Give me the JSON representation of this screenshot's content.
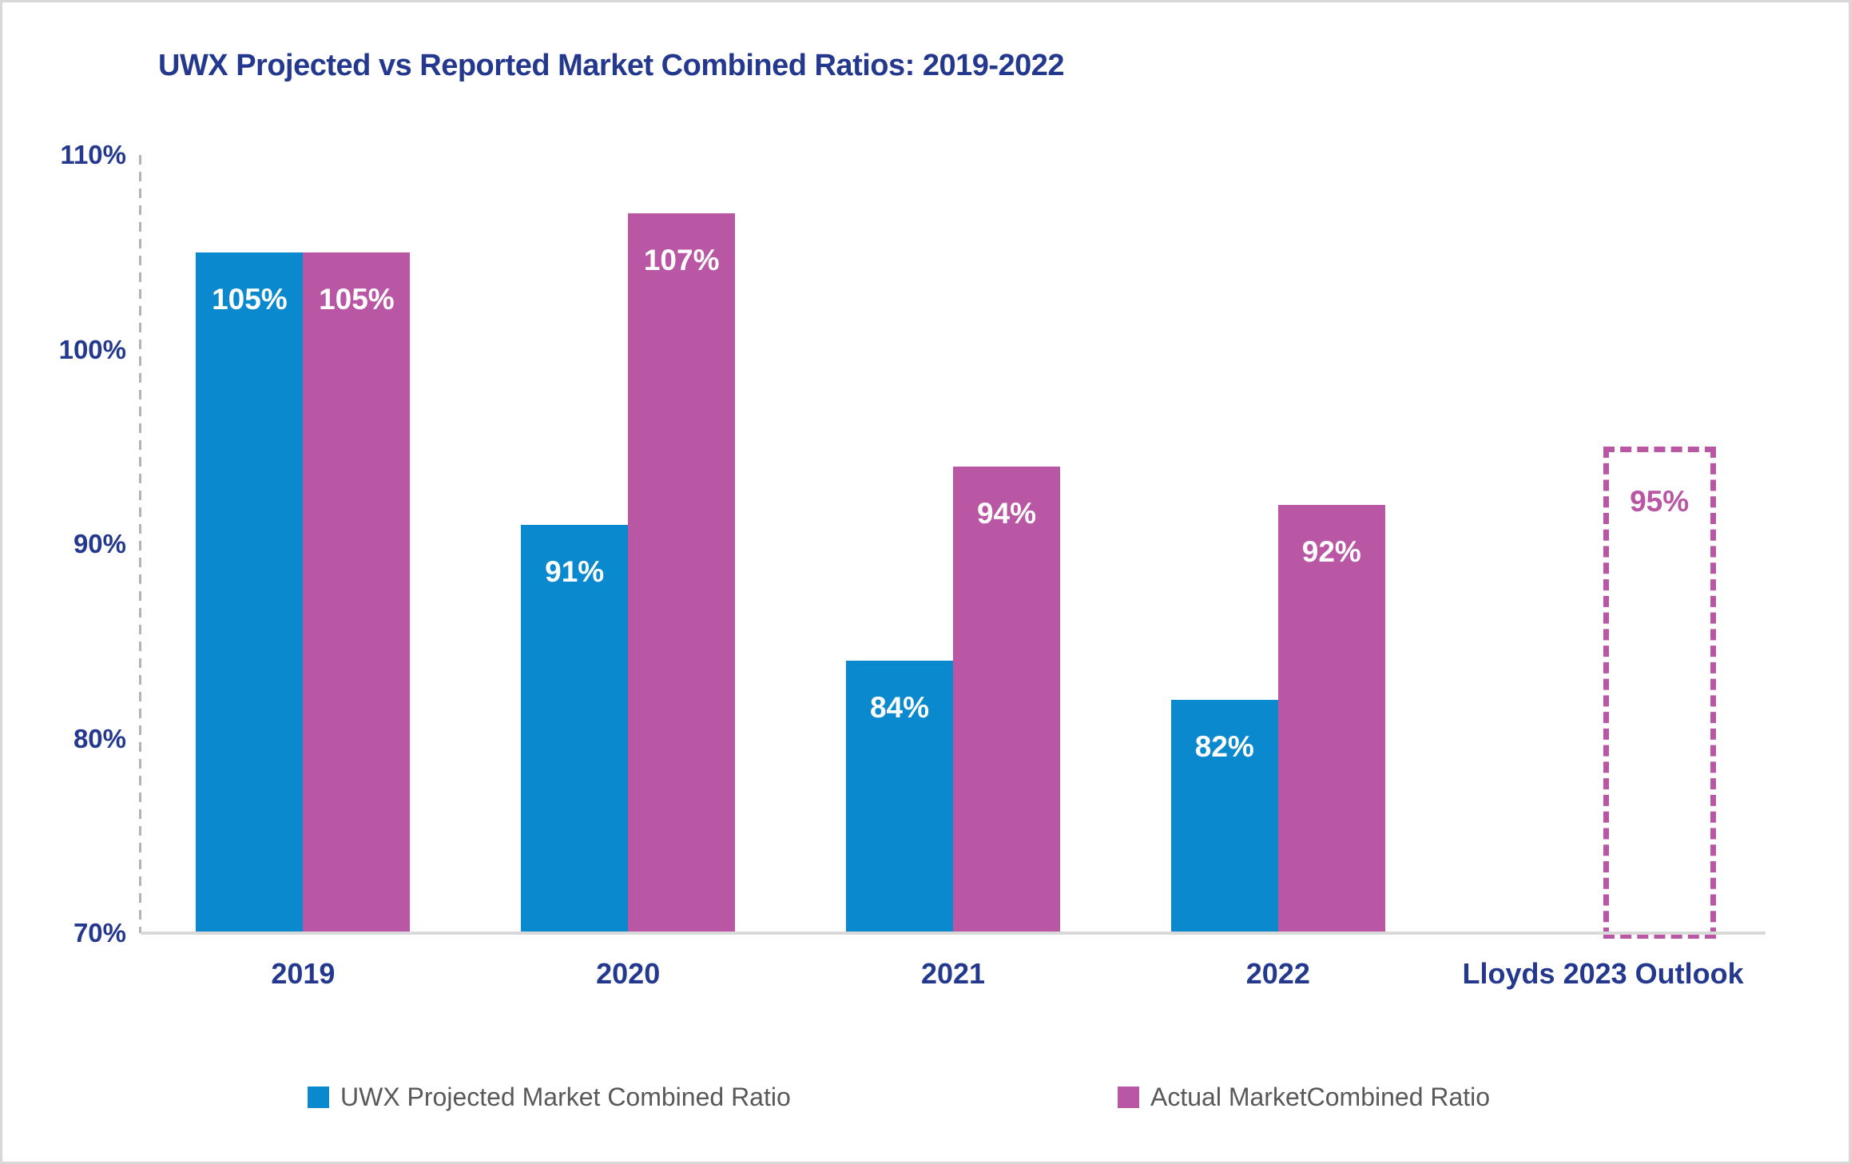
{
  "frame": {
    "background": "#ffffff",
    "border_color": "#d8d8d8"
  },
  "chart_data": {
    "type": "bar",
    "title": "UWX Projected vs Reported Market Combined Ratios: 2019-2022",
    "title_color": "#24388e",
    "categories": [
      "2019",
      "2020",
      "2021",
      "2022",
      "Lloyds 2023 Outlook"
    ],
    "series": [
      {
        "name": "UWX Projected Market Combined Ratio",
        "color": "#0b89ce",
        "values": [
          105,
          91,
          84,
          82,
          null
        ],
        "data_labels": [
          "105%",
          "91%",
          "84%",
          "82%",
          ""
        ]
      },
      {
        "name": "Actual MarketCombined Ratio",
        "color": "#b957a5",
        "values": [
          105,
          107,
          94,
          92,
          null
        ],
        "data_labels": [
          "105%",
          "107%",
          "94%",
          "92%",
          ""
        ]
      }
    ],
    "outlook_bar": {
      "category": "Lloyds 2023 Outlook",
      "category_index": 4,
      "value": 95,
      "data_label": "95%",
      "style": "dashed-outline",
      "color": "#b957a5"
    },
    "ylim": [
      70,
      110
    ],
    "y_axis": {
      "label_color": "#24388e",
      "ticks": [
        {
          "value": 110,
          "label": "110%"
        },
        {
          "value": 100,
          "label": "100%"
        },
        {
          "value": 90,
          "label": "90%"
        },
        {
          "value": 80,
          "label": "80%"
        },
        {
          "value": 70,
          "label": "70%"
        }
      ]
    },
    "x_axis": {
      "label_color": "#24388e"
    },
    "grid": false,
    "legend_position": "bottom",
    "legend_text_color": "#595959",
    "data_label_color": "#ffffff",
    "axis_line_color": "#d9d9d9",
    "dashed_axis_color": "#b3b3b3"
  }
}
